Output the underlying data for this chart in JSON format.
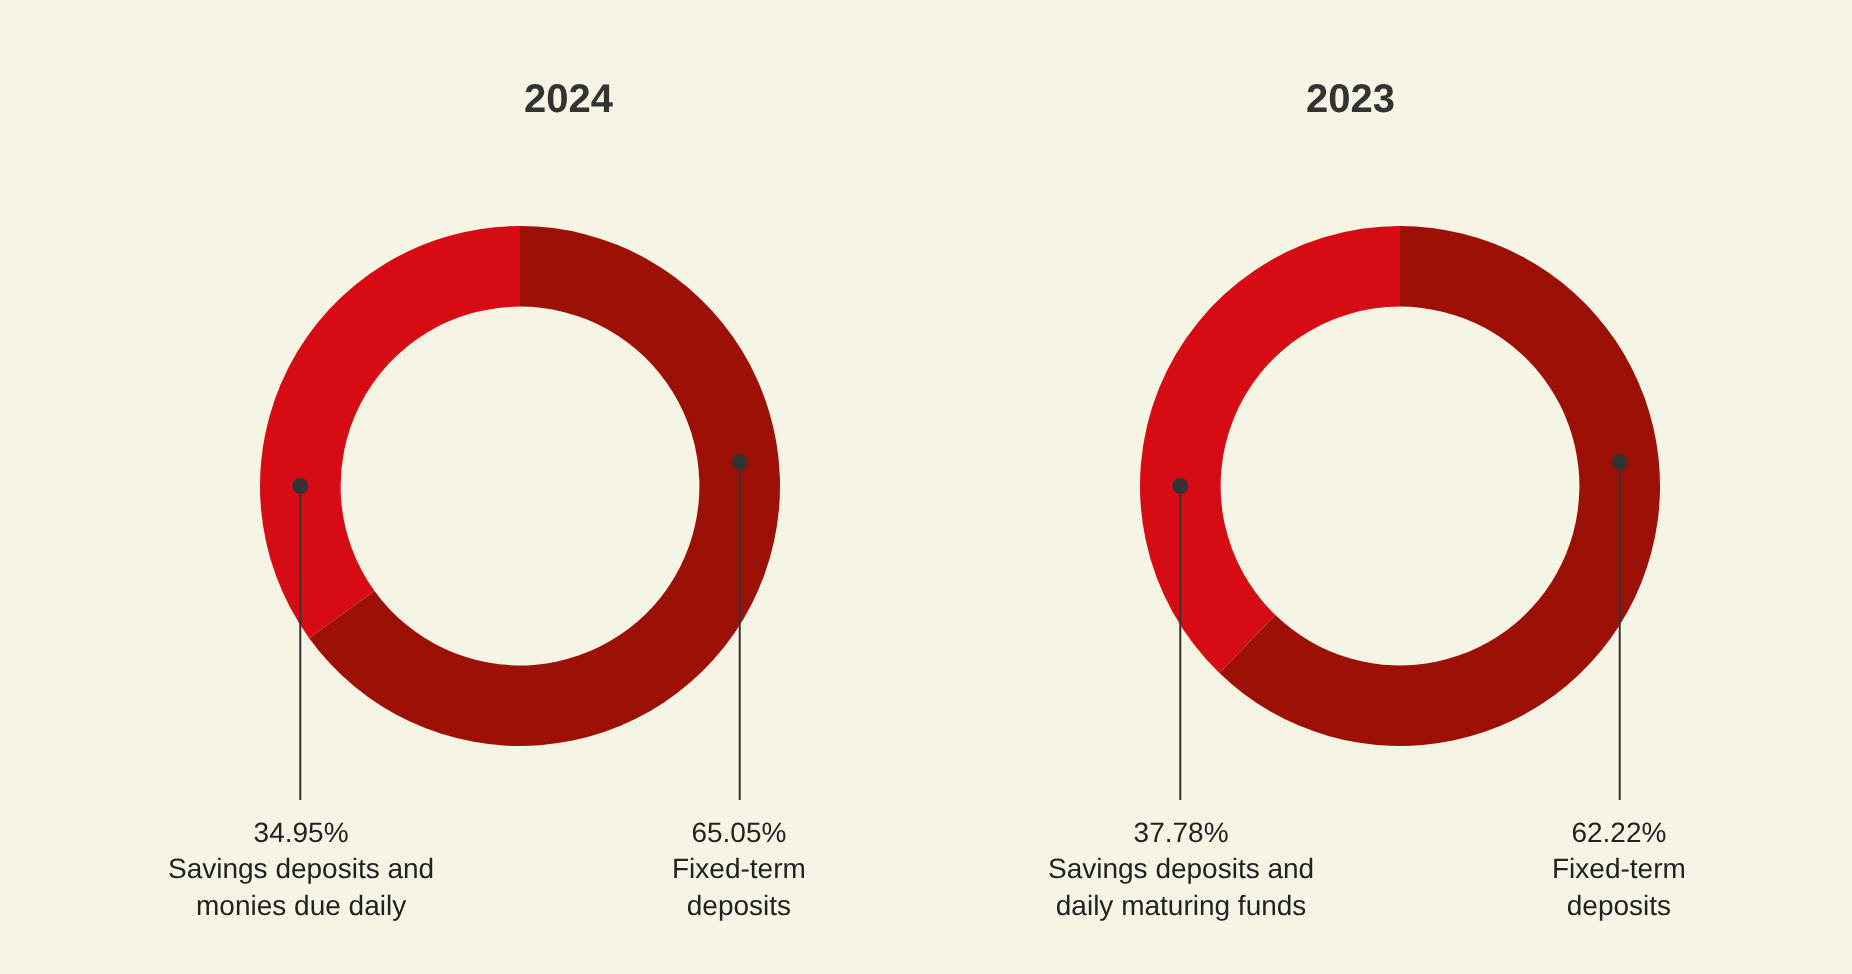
{
  "chart_data": [
    {
      "type": "donut",
      "title": "2024",
      "categories": [
        "Savings deposits and\nmonies due daily",
        "Fixed-term\ndeposits"
      ],
      "values": [
        34.95,
        65.05
      ],
      "value_labels": [
        "34.95%",
        "65.05%"
      ],
      "colors": [
        "#d60b14",
        "#9c1006"
      ]
    },
    {
      "type": "donut",
      "title": "2023",
      "categories": [
        "Savings deposits and\ndaily maturing funds",
        "Fixed-term\ndeposits"
      ],
      "values": [
        37.78,
        62.22
      ],
      "value_labels": [
        "37.78%",
        "62.22%"
      ],
      "colors": [
        "#d60b14",
        "#9c1006"
      ]
    }
  ]
}
